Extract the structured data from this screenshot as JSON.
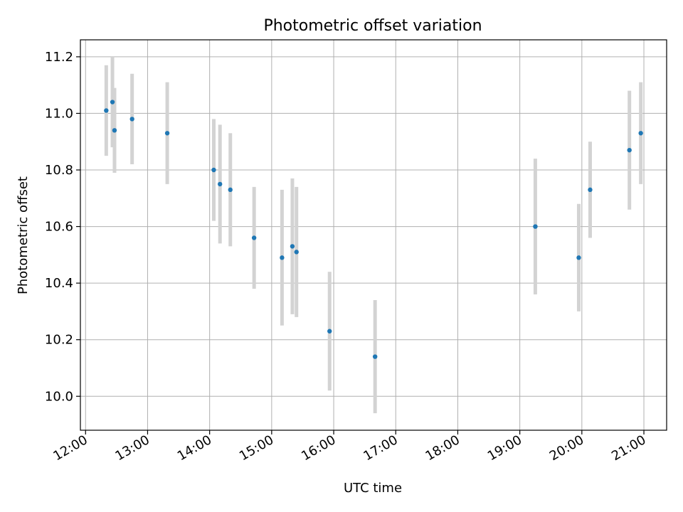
{
  "chart_data": {
    "type": "scatter",
    "title": "Photometric offset variation",
    "xlabel": "UTC time",
    "ylabel": "Photometric offset",
    "xlim": [
      "11:55",
      "21:22"
    ],
    "ylim": [
      9.88,
      11.26
    ],
    "xticks": [
      "12:00",
      "13:00",
      "14:00",
      "15:00",
      "16:00",
      "17:00",
      "18:00",
      "19:00",
      "20:00",
      "21:00"
    ],
    "yticks": [
      "10.0",
      "10.2",
      "10.4",
      "10.6",
      "10.8",
      "11.0",
      "11.2"
    ],
    "grid": true,
    "colors": {
      "points": "#1f77b4",
      "errorbars": "#d3d3d3",
      "grid": "#b0b0b0"
    },
    "series": [
      {
        "points": [
          {
            "x": "12:20",
            "y": 11.01,
            "yerr": 0.16
          },
          {
            "x": "12:26",
            "y": 11.04,
            "yerr": 0.16
          },
          {
            "x": "12:28",
            "y": 10.94,
            "yerr": 0.15
          },
          {
            "x": "12:45",
            "y": 10.98,
            "yerr": 0.16
          },
          {
            "x": "13:19",
            "y": 10.93,
            "yerr": 0.18
          },
          {
            "x": "14:04",
            "y": 10.8,
            "yerr": 0.18
          },
          {
            "x": "14:10",
            "y": 10.75,
            "yerr": 0.21
          },
          {
            "x": "14:20",
            "y": 10.73,
            "yerr": 0.2
          },
          {
            "x": "14:43",
            "y": 10.56,
            "yerr": 0.18
          },
          {
            "x": "15:10",
            "y": 10.49,
            "yerr": 0.24
          },
          {
            "x": "15:20",
            "y": 10.53,
            "yerr": 0.24
          },
          {
            "x": "15:24",
            "y": 10.51,
            "yerr": 0.23
          },
          {
            "x": "15:56",
            "y": 10.23,
            "yerr": 0.21
          },
          {
            "x": "16:40",
            "y": 10.14,
            "yerr": 0.2
          },
          {
            "x": "19:15",
            "y": 10.6,
            "yerr": 0.24
          },
          {
            "x": "19:57",
            "y": 10.49,
            "yerr": 0.19
          },
          {
            "x": "20:08",
            "y": 10.73,
            "yerr": 0.17
          },
          {
            "x": "20:46",
            "y": 10.87,
            "yerr": 0.21
          },
          {
            "x": "20:57",
            "y": 10.93,
            "yerr": 0.18
          }
        ]
      }
    ]
  }
}
